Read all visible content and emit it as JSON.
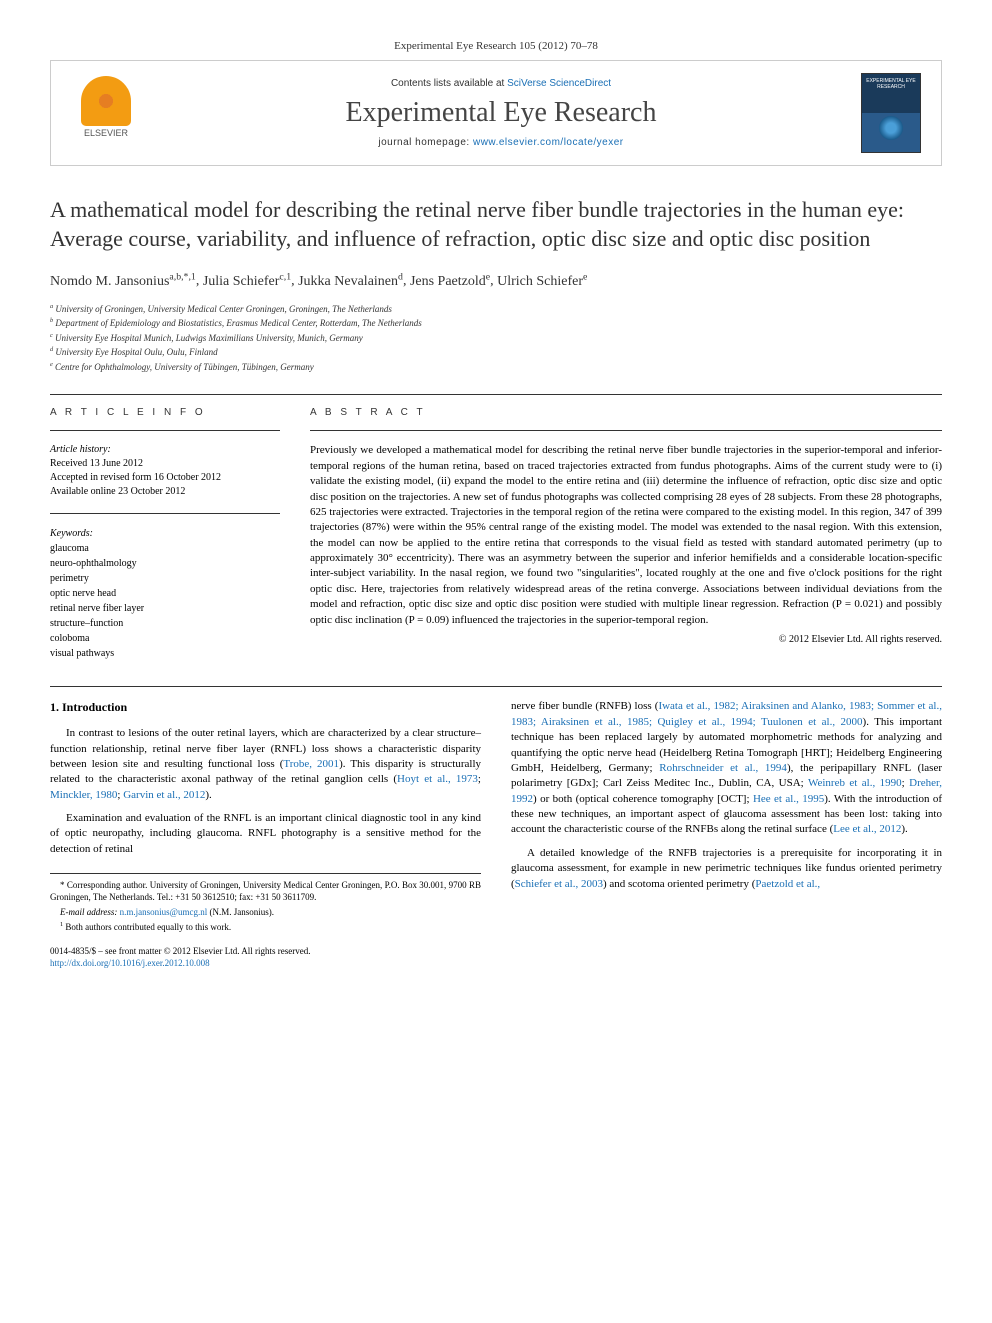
{
  "citation": "Experimental Eye Research 105 (2012) 70–78",
  "header": {
    "contentsPrefix": "Contents lists available at ",
    "contentsLink": "SciVerse ScienceDirect",
    "journalName": "Experimental Eye Research",
    "homepagePrefix": "journal homepage: ",
    "homepageUrl": "www.elsevier.com/locate/yexer",
    "publisherName": "ELSEVIER",
    "coverText": "EXPERIMENTAL EYE RESEARCH"
  },
  "title": "A mathematical model for describing the retinal nerve fiber bundle trajectories in the human eye: Average course, variability, and influence of refraction, optic disc size and optic disc position",
  "authors": [
    {
      "name": "Nomdo M. Jansonius",
      "marks": "a,b,*,1"
    },
    {
      "name": "Julia Schiefer",
      "marks": "c,1"
    },
    {
      "name": "Jukka Nevalainen",
      "marks": "d"
    },
    {
      "name": "Jens Paetzold",
      "marks": "e"
    },
    {
      "name": "Ulrich Schiefer",
      "marks": "e"
    }
  ],
  "affiliations": [
    {
      "mark": "a",
      "text": "University of Groningen, University Medical Center Groningen, Groningen, The Netherlands"
    },
    {
      "mark": "b",
      "text": "Department of Epidemiology and Biostatistics, Erasmus Medical Center, Rotterdam, The Netherlands"
    },
    {
      "mark": "c",
      "text": "University Eye Hospital Munich, Ludwigs Maximilians University, Munich, Germany"
    },
    {
      "mark": "d",
      "text": "University Eye Hospital Oulu, Oulu, Finland"
    },
    {
      "mark": "e",
      "text": "Centre for Ophthalmology, University of Tübingen, Tübingen, Germany"
    }
  ],
  "articleInfo": {
    "header": "A R T I C L E   I N F O",
    "historyLabel": "Article history:",
    "received": "Received 13 June 2012",
    "revised": "Accepted in revised form 16 October 2012",
    "online": "Available online 23 October 2012",
    "keywordsLabel": "Keywords:",
    "keywords": [
      "glaucoma",
      "neuro-ophthalmology",
      "perimetry",
      "optic nerve head",
      "retinal nerve fiber layer",
      "structure–function",
      "coloboma",
      "visual pathways"
    ]
  },
  "abstract": {
    "header": "A B S T R A C T",
    "text": "Previously we developed a mathematical model for describing the retinal nerve fiber bundle trajectories in the superior-temporal and inferior-temporal regions of the human retina, based on traced trajectories extracted from fundus photographs. Aims of the current study were to (i) validate the existing model, (ii) expand the model to the entire retina and (iii) determine the influence of refraction, optic disc size and optic disc position on the trajectories. A new set of fundus photographs was collected comprising 28 eyes of 28 subjects. From these 28 photographs, 625 trajectories were extracted. Trajectories in the temporal region of the retina were compared to the existing model. In this region, 347 of 399 trajectories (87%) were within the 95% central range of the existing model. The model was extended to the nasal region. With this extension, the model can now be applied to the entire retina that corresponds to the visual field as tested with standard automated perimetry (up to approximately 30° eccentricity). There was an asymmetry between the superior and inferior hemifields and a considerable location-specific inter-subject variability. In the nasal region, we found two \"singularities\", located roughly at the one and five o'clock positions for the right optic disc. Here, trajectories from relatively widespread areas of the retina converge. Associations between individual deviations from the model and refraction, optic disc size and optic disc position were studied with multiple linear regression. Refraction (P = 0.021) and possibly optic disc inclination (P = 0.09) influenced the trajectories in the superior-temporal region.",
    "copyright": "© 2012 Elsevier Ltd. All rights reserved."
  },
  "body": {
    "sectionNumber": "1.",
    "sectionTitle": "Introduction",
    "col1": {
      "p1a": "In contrast to lesions of the outer retinal layers, which are characterized by a clear structure–function relationship, retinal nerve fiber layer (RNFL) loss shows a characteristic disparity between lesion site and resulting functional loss (",
      "p1link1": "Trobe, 2001",
      "p1b": "). This disparity is structurally related to the characteristic axonal pathway of the retinal ganglion cells (",
      "p1link2": "Hoyt et al., 1973",
      "p1c": "; ",
      "p1link3": "Minckler, 1980",
      "p1d": "; ",
      "p1link4": "Garvin et al., 2012",
      "p1e": ").",
      "p2": "Examination and evaluation of the RNFL is an important clinical diagnostic tool in any kind of optic neuropathy, including glaucoma. RNFL photography is a sensitive method for the detection of retinal"
    },
    "col2": {
      "p1a": "nerve fiber bundle (RNFB) loss (",
      "p1links": "Iwata et al., 1982; Airaksinen and Alanko, 1983; Sommer et al., 1983; Airaksinen et al., 1985; Quigley et al., 1994; Tuulonen et al., 2000",
      "p1b": "). This important technique has been replaced largely by automated morphometric methods for analyzing and quantifying the optic nerve head (Heidelberg Retina Tomograph [HRT]; Heidelberg Engineering GmbH, Heidelberg, Germany; ",
      "p1link2": "Rohrschneider et al., 1994",
      "p1c": "), the peripapillary RNFL (laser polarimetry [GDx]; Carl Zeiss Meditec Inc., Dublin, CA, USA; ",
      "p1link3": "Weinreb et al., 1990",
      "p1d": "; ",
      "p1link4": "Dreher, 1992",
      "p1e": ") or both (optical coherence tomography [OCT]; ",
      "p1link5": "Hee et al., 1995",
      "p1f": "). With the introduction of these new techniques, an important aspect of glaucoma assessment has been lost: taking into account the characteristic course of the RNFBs along the retinal surface (",
      "p1link6": "Lee et al., 2012",
      "p1g": ").",
      "p2a": "A detailed knowledge of the RNFB trajectories is a prerequisite for incorporating it in glaucoma assessment, for example in new perimetric techniques like fundus oriented perimetry (",
      "p2link1": "Schiefer et al., 2003",
      "p2b": ") and scotoma oriented perimetry (",
      "p2link2": "Paetzold et al.,"
    }
  },
  "footnotes": {
    "corresponding": "* Corresponding author. University of Groningen, University Medical Center Groningen, P.O. Box 30.001, 9700 RB Groningen, The Netherlands. Tel.: +31 50 3612510; fax: +31 50 3611709.",
    "emailLabel": "E-mail address: ",
    "email": "n.m.jansonius@umcg.nl",
    "emailSuffix": " (N.M. Jansonius).",
    "equal": "Both authors contributed equally to this work.",
    "equalMark": "1"
  },
  "footer": {
    "issn": "0014-4835/$ – see front matter © 2012 Elsevier Ltd. All rights reserved.",
    "doi": "http://dx.doi.org/10.1016/j.exer.2012.10.008"
  }
}
